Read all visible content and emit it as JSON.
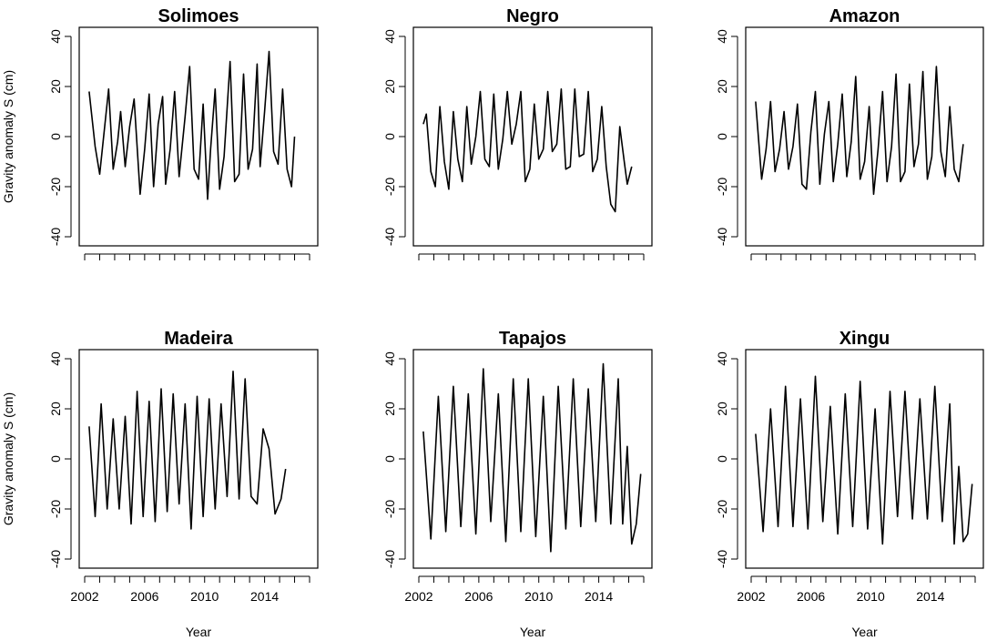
{
  "figure": {
    "xlabel": "Year",
    "ylabel": "Gravity anomaly S (cm)"
  },
  "chart_data": [
    {
      "type": "line",
      "title": "Solimoes",
      "xlabel": "Year",
      "ylabel": "Gravity anomaly S (cm)",
      "xlim": [
        2002,
        2017
      ],
      "ylim": [
        -40,
        40
      ],
      "xticks": [
        2002,
        2006,
        2010,
        2014
      ],
      "yticks": [
        -40,
        -20,
        0,
        20,
        40
      ],
      "grid": false,
      "x": [
        2002.3,
        2002.7,
        2003.0,
        2003.3,
        2003.6,
        2003.9,
        2004.2,
        2004.4,
        2004.7,
        2005.0,
        2005.3,
        2005.7,
        2006.0,
        2006.3,
        2006.6,
        2006.9,
        2007.2,
        2007.4,
        2007.7,
        2008.0,
        2008.3,
        2008.7,
        2009.0,
        2009.3,
        2009.6,
        2009.9,
        2010.2,
        2010.4,
        2010.7,
        2011.0,
        2011.3,
        2011.7,
        2012.0,
        2012.3,
        2012.6,
        2012.9,
        2013.2,
        2013.5,
        2013.7,
        2014.0,
        2014.3,
        2014.6,
        2014.9,
        2015.2,
        2015.5,
        2015.8,
        2016.0,
        2016.3,
        2016.6,
        2016.9
      ],
      "y": [
        18,
        -4,
        -15,
        2,
        19,
        -13,
        -2,
        10,
        -12,
        4,
        15,
        -23,
        -5,
        17,
        -20,
        5,
        16,
        -19,
        -5,
        18,
        -16,
        8,
        28,
        -13,
        -17,
        13,
        -25,
        -5,
        19,
        -21,
        -8,
        30,
        -18,
        -15,
        25,
        -13,
        -5,
        29,
        -12,
        10,
        34,
        -6,
        -11,
        19,
        -13,
        -20,
        0,
        null,
        null,
        null
      ]
    },
    {
      "type": "line",
      "title": "Negro",
      "xlabel": "Year",
      "ylabel": "",
      "xlim": [
        2002,
        2017
      ],
      "ylim": [
        -40,
        40
      ],
      "xticks": [
        2002,
        2006,
        2010,
        2014
      ],
      "yticks": [
        -40,
        -20,
        0,
        20,
        40
      ],
      "grid": false,
      "x": [
        2002.3,
        2002.5,
        2002.8,
        2003.1,
        2003.4,
        2003.7,
        2004.0,
        2004.3,
        2004.6,
        2004.9,
        2005.2,
        2005.5,
        2005.8,
        2006.1,
        2006.4,
        2006.7,
        2007.0,
        2007.3,
        2007.6,
        2007.9,
        2008.2,
        2008.5,
        2008.8,
        2009.1,
        2009.4,
        2009.7,
        2010.0,
        2010.3,
        2010.6,
        2010.9,
        2011.2,
        2011.5,
        2011.8,
        2012.1,
        2012.4,
        2012.7,
        2013.0,
        2013.3,
        2013.6,
        2013.9,
        2014.2,
        2014.5,
        2014.8,
        2015.1,
        2015.4,
        2015.7,
        2015.9,
        2016.2,
        2016.5,
        2016.8
      ],
      "y": [
        5,
        9,
        -14,
        -20,
        12,
        -10,
        -21,
        10,
        -9,
        -18,
        12,
        -11,
        0,
        18,
        -9,
        -12,
        17,
        -13,
        -1,
        18,
        -3,
        5,
        18,
        -18,
        -13,
        13,
        -9,
        -5,
        18,
        -6,
        -3,
        19,
        -13,
        -12,
        19,
        -8,
        -7,
        18,
        -14,
        -9,
        12,
        -12,
        -27,
        -30,
        4,
        -10,
        -19,
        -12,
        null,
        null
      ]
    },
    {
      "type": "line",
      "title": "Amazon",
      "xlabel": "Year",
      "ylabel": "",
      "xlim": [
        2002,
        2017
      ],
      "ylim": [
        -40,
        40
      ],
      "xticks": [
        2002,
        2006,
        2010,
        2014
      ],
      "yticks": [
        -40,
        -20,
        0,
        20,
        40
      ],
      "grid": false,
      "x": [
        2002.3,
        2002.7,
        2003.0,
        2003.3,
        2003.6,
        2003.9,
        2004.2,
        2004.5,
        2004.8,
        2005.1,
        2005.4,
        2005.7,
        2006.0,
        2006.3,
        2006.6,
        2006.9,
        2007.2,
        2007.5,
        2007.8,
        2008.1,
        2008.4,
        2008.7,
        2009.0,
        2009.3,
        2009.6,
        2009.9,
        2010.2,
        2010.5,
        2010.8,
        2011.1,
        2011.4,
        2011.7,
        2012.0,
        2012.3,
        2012.6,
        2012.9,
        2013.2,
        2013.5,
        2013.8,
        2014.1,
        2014.4,
        2014.7,
        2015.0,
        2015.3,
        2015.6,
        2015.9,
        2016.2,
        2016.5,
        2016.8,
        null
      ],
      "y": [
        14,
        -17,
        -5,
        14,
        -14,
        -5,
        10,
        -13,
        -4,
        13,
        -19,
        -21,
        2,
        18,
        -19,
        1,
        14,
        -18,
        -3,
        17,
        -16,
        -2,
        24,
        -17,
        -10,
        12,
        -23,
        -5,
        18,
        -18,
        -4,
        25,
        -18,
        -14,
        21,
        -12,
        -3,
        26,
        -17,
        -8,
        28,
        -6,
        -16,
        12,
        -13,
        -18,
        -3,
        null,
        null,
        null
      ]
    },
    {
      "type": "line",
      "title": "Madeira",
      "xlabel": "Year",
      "ylabel": "Gravity anomaly S (cm)",
      "xlim": [
        2002,
        2017
      ],
      "ylim": [
        -40,
        40
      ],
      "xticks": [
        2002,
        2006,
        2010,
        2014
      ],
      "yticks": [
        -40,
        -20,
        0,
        20,
        40
      ],
      "grid": false,
      "x": [
        2002.3,
        2002.7,
        2003.1,
        2003.5,
        2003.9,
        2004.3,
        2004.7,
        2005.1,
        2005.5,
        2005.9,
        2006.3,
        2006.7,
        2007.1,
        2007.5,
        2007.9,
        2008.3,
        2008.7,
        2009.1,
        2009.5,
        2009.9,
        2010.3,
        2010.7,
        2011.1,
        2011.5,
        2011.9,
        2012.3,
        2012.7,
        2013.1,
        2013.5,
        2013.9,
        2014.3,
        2014.7,
        2015.1,
        2015.4,
        2015.7,
        2016.0,
        2016.3,
        2016.6,
        2016.9,
        null
      ],
      "y": [
        13,
        -23,
        22,
        -20,
        16,
        -20,
        17,
        -26,
        27,
        -23,
        23,
        -25,
        28,
        -21,
        26,
        -18,
        22,
        -28,
        25,
        -23,
        24,
        -20,
        22,
        -15,
        35,
        -16,
        32,
        -15,
        -18,
        12,
        4,
        -22,
        -16,
        -4,
        null,
        null,
        null,
        null,
        null,
        null
      ]
    },
    {
      "type": "line",
      "title": "Tapajos",
      "xlabel": "Year",
      "ylabel": "",
      "xlim": [
        2002,
        2017
      ],
      "ylim": [
        -40,
        40
      ],
      "xticks": [
        2002,
        2006,
        2010,
        2014
      ],
      "yticks": [
        -40,
        -20,
        0,
        20,
        40
      ],
      "grid": false,
      "x": [
        2002.3,
        2002.8,
        2003.3,
        2003.8,
        2004.3,
        2004.8,
        2005.3,
        2005.8,
        2006.3,
        2006.8,
        2007.3,
        2007.8,
        2008.3,
        2008.8,
        2009.3,
        2009.8,
        2010.3,
        2010.8,
        2011.3,
        2011.8,
        2012.3,
        2012.8,
        2013.3,
        2013.8,
        2014.3,
        2014.8,
        2015.3,
        2015.6,
        2015.9,
        2016.2,
        2016.5,
        2016.8,
        null,
        null,
        null,
        null,
        null,
        null,
        null,
        null
      ],
      "y": [
        11,
        -32,
        25,
        -29,
        29,
        -27,
        26,
        -30,
        36,
        -25,
        26,
        -33,
        32,
        -29,
        32,
        -31,
        25,
        -37,
        29,
        -28,
        32,
        -27,
        28,
        -25,
        38,
        -26,
        32,
        -26,
        5,
        -34,
        -26,
        -6,
        null,
        null,
        null,
        null,
        null,
        null,
        null,
        null
      ]
    },
    {
      "type": "line",
      "title": "Xingu",
      "xlabel": "Year",
      "ylabel": "",
      "xlim": [
        2002,
        2017
      ],
      "ylim": [
        -40,
        40
      ],
      "xticks": [
        2002,
        2006,
        2010,
        2014
      ],
      "yticks": [
        -40,
        -20,
        0,
        20,
        40
      ],
      "grid": false,
      "x": [
        2002.3,
        2002.8,
        2003.3,
        2003.8,
        2004.3,
        2004.8,
        2005.3,
        2005.8,
        2006.3,
        2006.8,
        2007.3,
        2007.8,
        2008.3,
        2008.8,
        2009.3,
        2009.8,
        2010.3,
        2010.8,
        2011.3,
        2011.8,
        2012.3,
        2012.8,
        2013.3,
        2013.8,
        2014.3,
        2014.8,
        2015.3,
        2015.6,
        2015.9,
        2016.2,
        2016.5,
        2016.8,
        null,
        null,
        null,
        null,
        null,
        null,
        null,
        null
      ],
      "y": [
        10,
        -29,
        20,
        -27,
        29,
        -27,
        24,
        -28,
        33,
        -25,
        21,
        -30,
        26,
        -27,
        31,
        -28,
        20,
        -34,
        27,
        -23,
        27,
        -24,
        24,
        -24,
        29,
        -25,
        22,
        -34,
        -3,
        -33,
        -30,
        -10,
        null,
        null,
        null,
        null,
        null,
        null,
        null,
        null
      ]
    }
  ]
}
